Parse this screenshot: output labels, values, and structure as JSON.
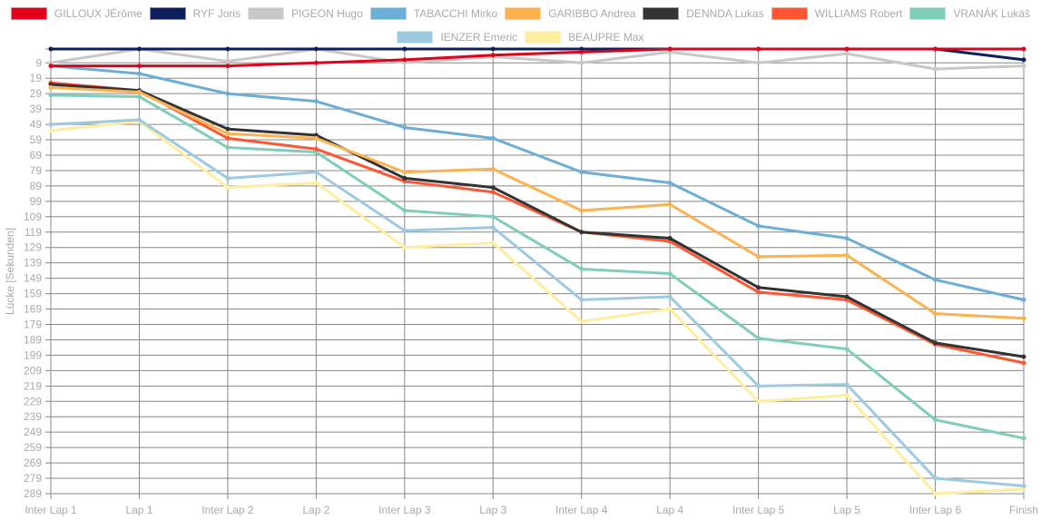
{
  "chart_data": {
    "type": "line",
    "title": "",
    "xlabel": "",
    "ylabel": "Lücke [Sekunden]",
    "y_inverted": true,
    "ylim": [
      0,
      289
    ],
    "y_ticks": [
      9,
      19,
      29,
      39,
      49,
      59,
      69,
      79,
      89,
      99,
      109,
      119,
      129,
      139,
      149,
      159,
      169,
      179,
      189,
      199,
      209,
      219,
      229,
      239,
      249,
      259,
      269,
      279,
      289
    ],
    "grid": true,
    "legend_position": "top",
    "categories": [
      "Inter Lap 1",
      "Lap 1",
      "Inter Lap 2",
      "Lap 2",
      "Inter Lap 3",
      "Lap 3",
      "Inter Lap 4",
      "Lap 4",
      "Inter Lap 5",
      "Lap 5",
      "Inter Lap 6",
      "Finish"
    ],
    "series": [
      {
        "name": "GILLOUX JÉrôme",
        "color": "#e2001a",
        "values": [
          11,
          11,
          11,
          9,
          7,
          4,
          2,
          0,
          0,
          0,
          0,
          0
        ]
      },
      {
        "name": "RYF Joris",
        "color": "#0c1f5c",
        "values": [
          0,
          0,
          0,
          0,
          0,
          0,
          0,
          0,
          0,
          0,
          0,
          7
        ]
      },
      {
        "name": "PIGEON Hugo",
        "color": "#c8c8c8",
        "values": [
          9,
          0,
          8,
          0,
          9,
          5,
          9,
          2,
          9,
          3,
          13,
          11
        ]
      },
      {
        "name": "TABACCHI Mirko",
        "color": "#6baed6",
        "values": [
          11,
          16,
          29,
          34,
          51,
          58,
          80,
          87,
          115,
          123,
          150,
          163
        ]
      },
      {
        "name": "GARIBBO Andrea",
        "color": "#fdb24f",
        "values": [
          25,
          28,
          55,
          58,
          80,
          78,
          105,
          101,
          135,
          134,
          172,
          175
        ]
      },
      {
        "name": "DENNDA Lukas",
        "color": "#333333",
        "values": [
          23,
          27,
          52,
          56,
          84,
          90,
          119,
          123,
          155,
          161,
          191,
          200
        ]
      },
      {
        "name": "WILLIAMS Robert",
        "color": "#ff5533",
        "values": [
          22,
          27,
          58,
          65,
          86,
          93,
          119,
          125,
          158,
          163,
          192,
          204
        ]
      },
      {
        "name": "VRANÁK Lukáš",
        "color": "#7fcdbb",
        "values": [
          30,
          31,
          64,
          67,
          105,
          109,
          143,
          146,
          188,
          195,
          241,
          253
        ]
      },
      {
        "name": "IENZER Emeric",
        "color": "#9ecae1",
        "values": [
          49,
          46,
          84,
          80,
          118,
          116,
          163,
          161,
          219,
          218,
          279,
          284
        ]
      },
      {
        "name": "BEAUPRE Max",
        "color": "#ffeda0",
        "values": [
          53,
          47,
          90,
          87,
          129,
          126,
          177,
          169,
          229,
          225,
          289,
          286
        ]
      }
    ]
  }
}
